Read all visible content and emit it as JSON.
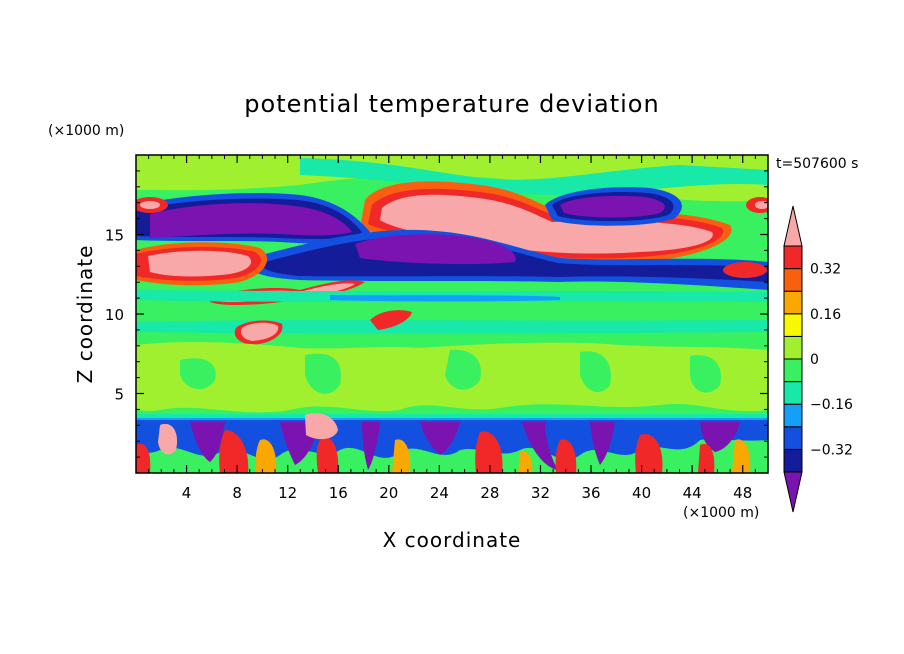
{
  "chart_data": {
    "type": "heatmap",
    "title": "potential temperature deviation",
    "xlabel": "X coordinate",
    "ylabel": "Z coordinate",
    "x_unit": "(×1000 m)",
    "y_unit": "(×1000 m)",
    "time_label": "t=507600 s",
    "xlim": [
      0,
      50
    ],
    "ylim": [
      0,
      20
    ],
    "x_ticks": [
      4,
      8,
      12,
      16,
      20,
      24,
      28,
      32,
      36,
      40,
      44,
      48
    ],
    "y_ticks": [
      5,
      10,
      15
    ],
    "x_tick_labels": [
      "4",
      "8",
      "12",
      "16",
      "20",
      "24",
      "28",
      "32",
      "36",
      "40",
      "44",
      "48"
    ],
    "y_tick_labels": [
      "5",
      "10",
      "15"
    ],
    "colorbar": {
      "levels": [
        -0.4,
        -0.32,
        -0.24,
        -0.16,
        -0.08,
        0,
        0.08,
        0.16,
        0.24,
        0.32,
        0.4
      ],
      "labels": [
        "0.32",
        "0.16",
        "0",
        "−0.16",
        "−0.32"
      ],
      "label_values": [
        0.32,
        0.16,
        0,
        -0.16,
        -0.32
      ],
      "colors": [
        "#7a13b0",
        "#141c9a",
        "#1450e0",
        "#14a0f8",
        "#18e8a8",
        "#38f060",
        "#a0f030",
        "#f8f800",
        "#f8a800",
        "#f86010",
        "#f02828",
        "#f8a8a8"
      ],
      "background_color": "#38f060"
    },
    "fields": [
      {
        "name": "upper-negative-band-west",
        "x": [
          0,
          15
        ],
        "z": [
          13.5,
          17.5
        ],
        "value": -0.4
      },
      {
        "name": "upper-positive-band-east",
        "x": [
          19,
          46
        ],
        "z": [
          14,
          18
        ],
        "value": 0.4
      },
      {
        "name": "upper-negative-core-east",
        "x": [
          34,
          43
        ],
        "z": [
          15.8,
          17.8
        ],
        "value": -0.4
      },
      {
        "name": "mid-upper-negative-band",
        "x": [
          10,
          46
        ],
        "z": [
          12.5,
          15.5
        ],
        "value": -0.36
      },
      {
        "name": "mid-positive-band-west",
        "x": [
          0,
          9
        ],
        "z": [
          12,
          14
        ],
        "value": 0.4
      },
      {
        "name": "low-level-mixed-layer",
        "x": [
          0,
          50
        ],
        "z": [
          0,
          3.5
        ],
        "value": -0.3
      }
    ]
  }
}
